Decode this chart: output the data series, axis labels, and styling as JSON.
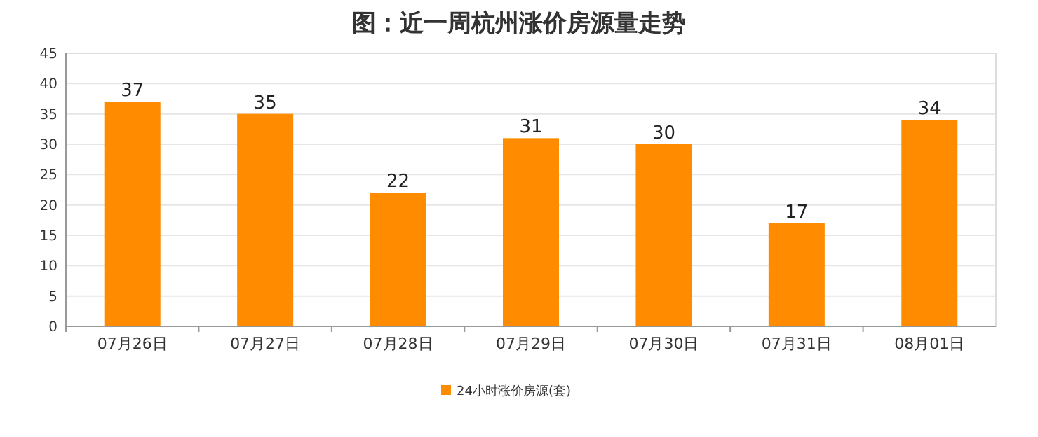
{
  "chart_data": {
    "type": "bar",
    "title": "图：近一周杭州涨价房源量走势",
    "categories": [
      "07月26日",
      "07月27日",
      "07月28日",
      "07月29日",
      "07月30日",
      "07月31日",
      "08月01日"
    ],
    "series": [
      {
        "name": "24小时涨价房源(套)",
        "color": "#ff8c00",
        "values": [
          37,
          35,
          22,
          31,
          30,
          17,
          34
        ]
      }
    ],
    "ylim": [
      0,
      45
    ],
    "yticks": [
      0,
      5,
      10,
      15,
      20,
      25,
      30,
      35,
      40,
      45
    ],
    "grid": "y",
    "legend": "bottom",
    "data_labels": true
  }
}
